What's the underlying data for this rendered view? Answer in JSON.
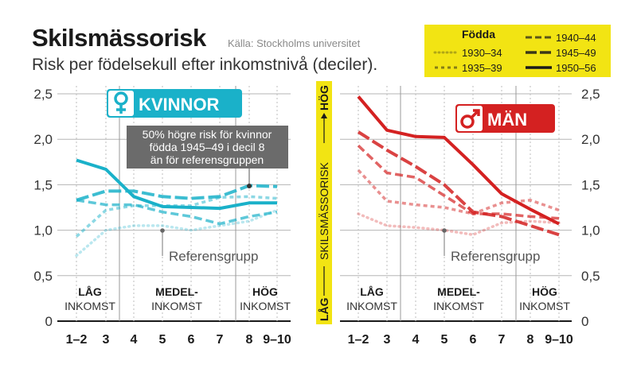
{
  "header": {
    "title": "Skilsmässorisk",
    "source": "Källa: Stockholms universitet",
    "subtitle": "Risk per födelsekull efter inkomstnivå (deciler)."
  },
  "legend": {
    "title": "Födda",
    "entries": [
      "1930–34",
      "1935–39",
      "1940–44",
      "1945–49",
      "1950–56"
    ]
  },
  "middle_axis": {
    "label": "SKILSMÄSSORISK",
    "top": "HÖG",
    "bottom": "LÅG"
  },
  "income_groups": {
    "low": [
      "LÅG",
      "INKOMST"
    ],
    "mid": [
      "MEDEL-",
      "INKOMST"
    ],
    "high": [
      "HÖG",
      "INKOMST"
    ]
  },
  "annotation": {
    "women_note": [
      "50% högre risk för kvinnor",
      "födda 1945–49 i decil 8",
      "än för referensgruppen"
    ],
    "reference": "Referensgrupp"
  },
  "colors": {
    "women": "#1ab1c9",
    "men": "#d42121",
    "legend_bg": "#f2e413",
    "note_bg": "#6b6b6b"
  },
  "icons": {
    "women": "female-symbol-icon",
    "men": "male-symbol-icon"
  },
  "chart_data": [
    {
      "type": "line",
      "panel": "KVINNOR",
      "x": [
        "1–2",
        "3",
        "4",
        "5",
        "6",
        "7",
        "8",
        "9–10"
      ],
      "ylim": [
        0,
        2.5
      ],
      "yticks": [
        "0",
        "0,5",
        "1,0",
        "1,5",
        "2,0",
        "2,5"
      ],
      "reference_point": {
        "x": "5",
        "y": 1.0
      },
      "series": [
        {
          "name": "1930–34",
          "values": [
            0.72,
            1.0,
            1.05,
            1.05,
            1.0,
            1.05,
            1.1,
            1.22
          ]
        },
        {
          "name": "1935–39",
          "values": [
            0.93,
            1.22,
            1.27,
            1.27,
            1.27,
            1.36,
            1.37,
            1.35
          ]
        },
        {
          "name": "1940–44",
          "values": [
            1.33,
            1.28,
            1.28,
            1.2,
            1.15,
            1.07,
            1.15,
            1.2
          ]
        },
        {
          "name": "1945–49",
          "values": [
            1.33,
            1.43,
            1.43,
            1.37,
            1.35,
            1.37,
            1.49,
            1.48
          ]
        },
        {
          "name": "1950–56",
          "values": [
            1.77,
            1.67,
            1.37,
            1.26,
            1.25,
            1.24,
            1.3,
            1.3
          ]
        }
      ]
    },
    {
      "type": "line",
      "panel": "MÄN",
      "x": [
        "1–2",
        "3",
        "4",
        "5",
        "6",
        "7",
        "8",
        "9–10"
      ],
      "ylim": [
        0,
        2.5
      ],
      "yticks": [
        "0",
        "0,5",
        "1,0",
        "1,5",
        "2,0",
        "2,5"
      ],
      "reference_point": {
        "x": "5",
        "y": 1.0
      },
      "series": [
        {
          "name": "1930–34",
          "values": [
            1.18,
            1.05,
            1.03,
            1.0,
            0.95,
            1.08,
            1.1,
            1.08
          ]
        },
        {
          "name": "1935–39",
          "values": [
            1.66,
            1.32,
            1.28,
            1.25,
            1.18,
            1.3,
            1.33,
            1.22
          ]
        },
        {
          "name": "1940–44",
          "values": [
            1.93,
            1.63,
            1.58,
            1.38,
            1.18,
            1.18,
            1.15,
            1.13
          ]
        },
        {
          "name": "1945–49",
          "values": [
            2.08,
            1.88,
            1.7,
            1.5,
            1.2,
            1.15,
            1.05,
            0.95
          ]
        },
        {
          "name": "1950–56",
          "values": [
            2.47,
            2.1,
            2.03,
            2.02,
            1.72,
            1.4,
            1.23,
            1.07
          ]
        }
      ]
    }
  ]
}
